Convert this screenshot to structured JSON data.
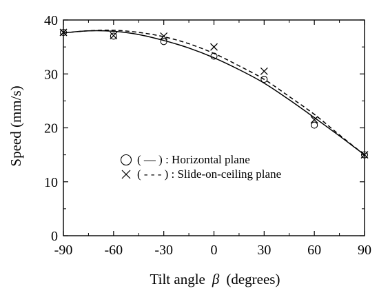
{
  "chart_data": {
    "type": "scatter",
    "xlabel_prefix": "Tilt angle",
    "xlabel_symbol": "β",
    "xlabel_suffix": "(degrees)",
    "ylabel": "Speed (mm/s)",
    "xlim": [
      -90,
      90
    ],
    "ylim": [
      0,
      40
    ],
    "xticks": [
      -90,
      -60,
      -30,
      0,
      30,
      60,
      90
    ],
    "yticks": [
      0,
      10,
      20,
      30,
      40
    ],
    "grid": false,
    "legend_position": "center-left",
    "series": [
      {
        "name": "Horizontal plane",
        "legend_label": "( — ) : Horizontal plane",
        "marker": "circle",
        "line_style": "solid",
        "x": [
          -90,
          -60,
          -30,
          0,
          30,
          60,
          90
        ],
        "y": [
          37.7,
          37.0,
          36.0,
          33.3,
          29.0,
          20.5,
          15.0
        ],
        "fit_x": [
          -90,
          -75,
          -60,
          -45,
          -30,
          -15,
          0,
          15,
          30,
          45,
          60,
          75,
          90
        ],
        "fit_y": [
          37.6,
          38.0,
          37.9,
          37.3,
          36.2,
          34.8,
          33.0,
          30.8,
          28.3,
          25.2,
          21.9,
          18.5,
          15.0
        ]
      },
      {
        "name": "Slide-on-ceiling plane",
        "legend_label": "( - - - ) : Slide-on-ceiling plane",
        "marker": "cross",
        "line_style": "dashed",
        "x": [
          -90,
          -60,
          -30,
          0,
          30,
          60,
          90
        ],
        "y": [
          37.7,
          37.1,
          37.0,
          35.0,
          30.5,
          21.5,
          15.0
        ],
        "fit_x": [
          -90,
          -75,
          -60,
          -45,
          -30,
          -15,
          0,
          15,
          30,
          45,
          60,
          75,
          90
        ],
        "fit_y": [
          37.6,
          38.0,
          38.1,
          37.7,
          36.9,
          35.6,
          33.8,
          31.5,
          29.0,
          25.8,
          22.5,
          18.7,
          15.0
        ]
      }
    ]
  }
}
